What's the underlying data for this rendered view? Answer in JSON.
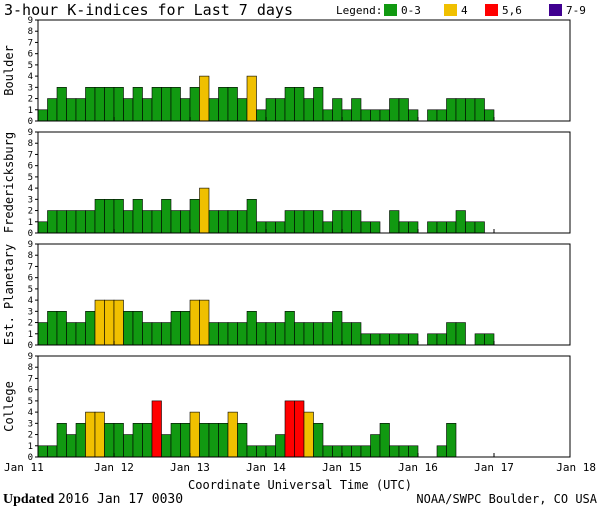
{
  "title": "3-hour K-indices for Last 7 days",
  "legend": {
    "label": "Legend:",
    "items": [
      {
        "label": "0-3",
        "color": "#119911"
      },
      {
        "label": "4",
        "color": "#f0c000"
      },
      {
        "label": "5,6",
        "color": "#ff0000"
      },
      {
        "label": "7-9",
        "color": "#400090"
      }
    ]
  },
  "footer": {
    "updated_label": "Updated",
    "updated_value": "2016 Jan 17 0030",
    "credit": "NOAA/SWPC Boulder, CO USA"
  },
  "chart_data": {
    "type": "bar",
    "xlabel": "Coordinate Universal Time (UTC)",
    "x_tick_labels": [
      "Jan 11",
      "Jan 12",
      "Jan 13",
      "Jan 14",
      "Jan 15",
      "Jan 16",
      "Jan 17",
      "Jan 18"
    ],
    "ylim": [
      0,
      9
    ],
    "y_ticks": [
      "0",
      "1",
      "2",
      "3",
      "4",
      "5",
      "6",
      "7",
      "8",
      "9"
    ],
    "interval_hours": 3,
    "series": [
      {
        "name": "Boulder",
        "values": [
          1,
          2,
          3,
          2,
          2,
          3,
          3,
          3,
          3,
          2,
          3,
          2,
          3,
          3,
          3,
          2,
          3,
          4,
          2,
          3,
          3,
          2,
          4,
          1,
          2,
          2,
          3,
          3,
          2,
          3,
          1,
          2,
          1,
          2,
          1,
          1,
          1,
          2,
          2,
          1,
          0,
          1,
          1,
          2,
          2,
          2,
          2,
          1,
          0,
          0,
          0,
          0,
          0,
          0,
          0,
          0
        ]
      },
      {
        "name": "Fredericksburg",
        "values": [
          1,
          2,
          2,
          2,
          2,
          2,
          3,
          3,
          3,
          2,
          3,
          2,
          2,
          3,
          2,
          2,
          3,
          4,
          2,
          2,
          2,
          2,
          3,
          1,
          1,
          1,
          2,
          2,
          2,
          2,
          1,
          2,
          2,
          2,
          1,
          1,
          0,
          2,
          1,
          1,
          0,
          1,
          1,
          1,
          2,
          1,
          1,
          0,
          0,
          0,
          0,
          0,
          0,
          0,
          0,
          0
        ]
      },
      {
        "name": "Est. Planetary",
        "values": [
          2,
          3,
          3,
          2,
          2,
          3,
          4,
          4,
          4,
          3,
          3,
          2,
          2,
          2,
          3,
          3,
          4,
          4,
          2,
          2,
          2,
          2,
          3,
          2,
          2,
          2,
          3,
          2,
          2,
          2,
          2,
          3,
          2,
          2,
          1,
          1,
          1,
          1,
          1,
          1,
          0,
          1,
          1,
          2,
          2,
          0,
          1,
          1,
          0,
          0,
          0,
          0,
          0,
          0,
          0,
          0
        ]
      },
      {
        "name": "College",
        "values": [
          1,
          1,
          3,
          2,
          3,
          4,
          4,
          3,
          3,
          2,
          3,
          3,
          5,
          2,
          3,
          3,
          4,
          3,
          3,
          3,
          4,
          3,
          1,
          1,
          1,
          2,
          5,
          5,
          4,
          3,
          1,
          1,
          1,
          1,
          1,
          2,
          3,
          1,
          1,
          1,
          0,
          0,
          1,
          3,
          0,
          0,
          0,
          0,
          0,
          0,
          0,
          0,
          0,
          0,
          0,
          0
        ]
      }
    ]
  }
}
